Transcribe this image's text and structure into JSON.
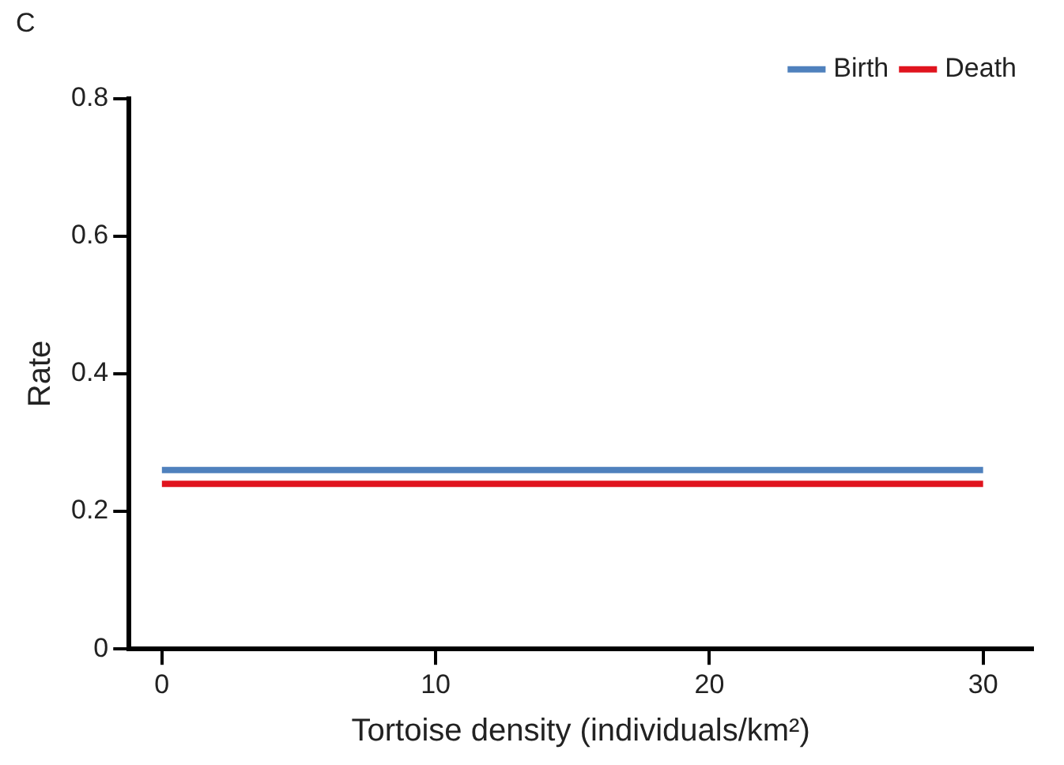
{
  "chart_data": {
    "type": "line",
    "title": "C",
    "xlabel": "Tortoise density (individuals/km²)",
    "ylabel": "Rate",
    "x": [
      0,
      30
    ],
    "series": [
      {
        "name": "Birth",
        "color": "#4f81bd",
        "values": [
          0.26,
          0.26
        ]
      },
      {
        "name": "Death",
        "color": "#e0141e",
        "values": [
          0.24,
          0.24
        ]
      }
    ],
    "xlim": [
      -1.2,
      31.8
    ],
    "xticks": [
      0,
      10,
      20,
      30
    ],
    "ylim": [
      0,
      0.8
    ],
    "yticks": [
      0,
      0.2,
      0.4,
      0.6,
      0.8
    ],
    "grid": false,
    "legend": "top right",
    "marker": "none",
    "line_style": "solid"
  }
}
